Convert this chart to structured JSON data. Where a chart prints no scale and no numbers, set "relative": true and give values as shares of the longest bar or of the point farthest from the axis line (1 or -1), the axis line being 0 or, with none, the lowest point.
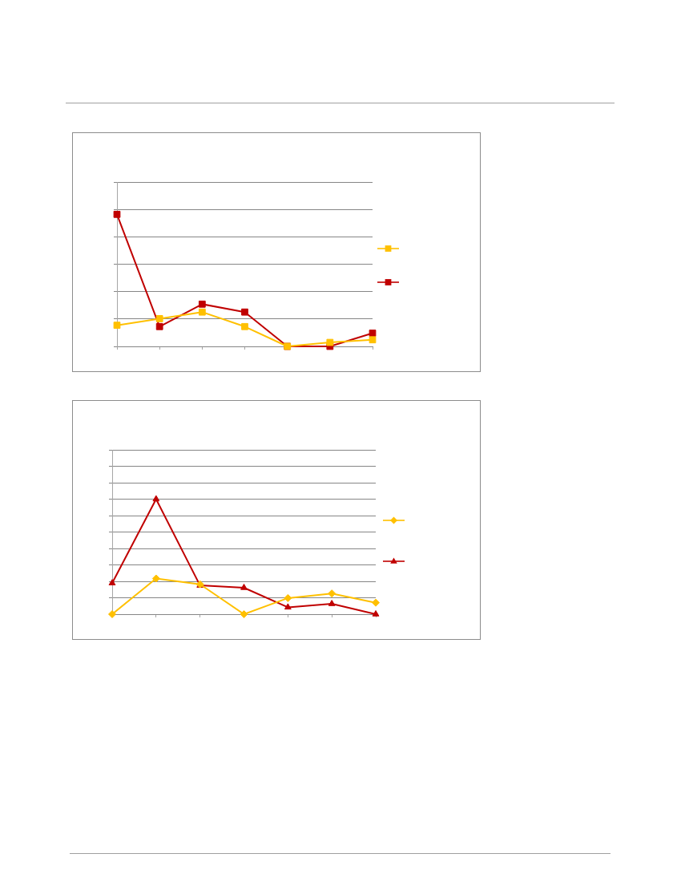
{
  "chart_data": [
    {
      "type": "line",
      "categories": [
        null,
        null,
        null,
        null,
        null,
        null,
        null
      ],
      "relative": true,
      "grid": "y",
      "tick_labels": false,
      "marker": "square",
      "series": [
        {
          "color": "#ffc000",
          "values": [
            0.16,
            0.21,
            0.26,
            0.15,
            0,
            0.03,
            0.05
          ]
        },
        {
          "color": "#c00000",
          "values": [
            1,
            0.15,
            0.32,
            0.26,
            0,
            0,
            0.1
          ]
        }
      ]
    },
    {
      "type": "line",
      "categories": [
        null,
        null,
        null,
        null,
        null,
        null,
        null
      ],
      "relative": true,
      "grid": "y",
      "tick_labels": false,
      "series": [
        {
          "color": "#ffc000",
          "marker": "diamond",
          "values": [
            0,
            0.31,
            0.26,
            0,
            0.14,
            0.18,
            0.1
          ]
        },
        {
          "color": "#c00000",
          "marker": "triangle",
          "values": [
            0.27,
            1,
            0.25,
            0.23,
            0.06,
            0.09,
            0
          ]
        }
      ]
    }
  ]
}
